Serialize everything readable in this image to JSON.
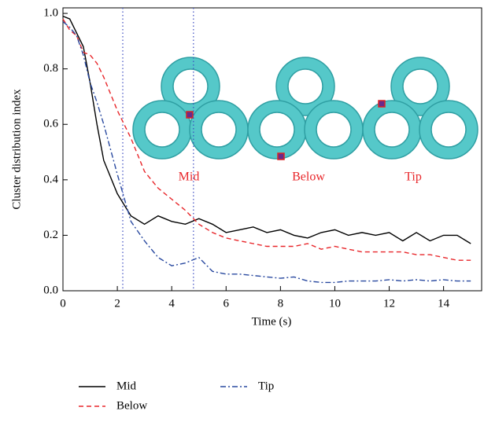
{
  "chart_data": {
    "type": "line",
    "xlabel": "Time (s)",
    "ylabel": "Cluster distribution index",
    "x": [
      0,
      0.25,
      0.5,
      0.75,
      1,
      1.25,
      1.5,
      2,
      2.5,
      3,
      3.5,
      4,
      4.5,
      5,
      5.5,
      6,
      6.5,
      7,
      7.5,
      8,
      8.5,
      9,
      9.5,
      10,
      10.5,
      11,
      11.5,
      12,
      12.5,
      13,
      13.5,
      14,
      14.5,
      15
    ],
    "series": [
      {
        "name": "Mid",
        "color": "#000000",
        "dash": "solid",
        "values": [
          0.99,
          0.98,
          0.93,
          0.88,
          0.75,
          0.6,
          0.47,
          0.35,
          0.27,
          0.24,
          0.27,
          0.25,
          0.24,
          0.26,
          0.24,
          0.21,
          0.22,
          0.23,
          0.21,
          0.22,
          0.2,
          0.19,
          0.21,
          0.22,
          0.2,
          0.21,
          0.2,
          0.21,
          0.18,
          0.21,
          0.18,
          0.2,
          0.2,
          0.17
        ]
      },
      {
        "name": "Below",
        "color": "#e8262a",
        "dash": "dashed",
        "values": [
          0.98,
          0.94,
          0.92,
          0.86,
          0.85,
          0.82,
          0.77,
          0.65,
          0.55,
          0.43,
          0.37,
          0.33,
          0.29,
          0.24,
          0.21,
          0.19,
          0.18,
          0.17,
          0.16,
          0.16,
          0.16,
          0.17,
          0.15,
          0.16,
          0.15,
          0.14,
          0.14,
          0.14,
          0.14,
          0.13,
          0.13,
          0.12,
          0.11,
          0.11
        ]
      },
      {
        "name": "Tip",
        "color": "#2a4aa0",
        "dash": "dashdot",
        "values": [
          0.97,
          0.95,
          0.92,
          0.85,
          0.75,
          0.68,
          0.6,
          0.42,
          0.25,
          0.18,
          0.12,
          0.09,
          0.1,
          0.12,
          0.07,
          0.06,
          0.06,
          0.055,
          0.05,
          0.045,
          0.05,
          0.035,
          0.03,
          0.03,
          0.035,
          0.035,
          0.035,
          0.04,
          0.035,
          0.04,
          0.035,
          0.04,
          0.035,
          0.035
        ]
      }
    ],
    "vlines": [
      2.2,
      4.8
    ],
    "annotations": [
      "Mid",
      "Below",
      "Tip"
    ],
    "xlim": [
      0,
      15.4
    ],
    "ylim": [
      0,
      1.02
    ],
    "xticks": [
      0,
      2,
      4,
      6,
      8,
      10,
      12,
      14
    ],
    "yticks": [
      {
        "value": 0,
        "label": "0.0"
      },
      0.2,
      0.4,
      0.6,
      0.8,
      {
        "value": 1,
        "label": "1.0"
      }
    ]
  }
}
